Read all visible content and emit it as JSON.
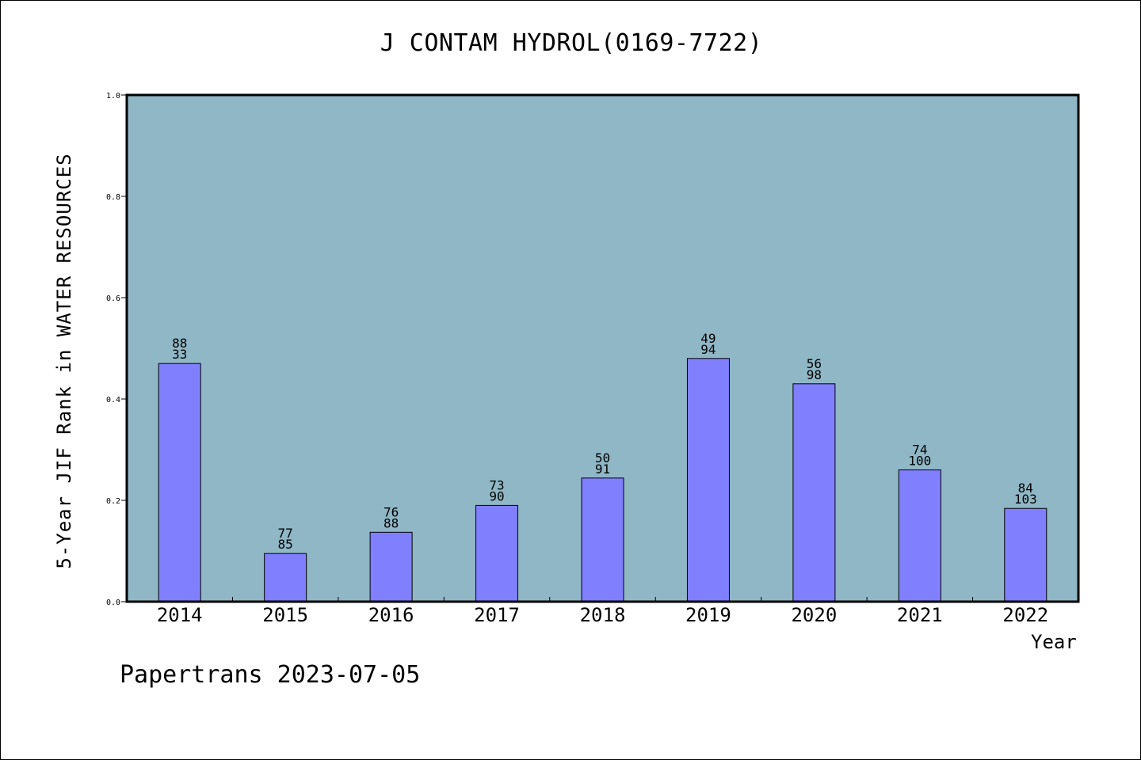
{
  "chart_data": {
    "type": "bar",
    "title": "J CONTAM HYDROL(0169-7722)",
    "xlabel": "Year",
    "ylabel": "5-Year JIF Rank in WATER RESOURCES",
    "ylim": [
      0.0,
      1.0
    ],
    "yticks": [
      "0.0",
      "0.2",
      "0.4",
      "0.6",
      "0.8",
      "1.0"
    ],
    "categories": [
      "2014",
      "2015",
      "2016",
      "2017",
      "2018",
      "2019",
      "2020",
      "2021",
      "2022"
    ],
    "values": [
      0.47,
      0.095,
      0.137,
      0.19,
      0.244,
      0.48,
      0.43,
      0.26,
      0.184
    ],
    "labels_top": [
      "88",
      "77",
      "76",
      "73",
      "50",
      "49",
      "56",
      "74",
      "84"
    ],
    "labels_bottom": [
      "33",
      "85",
      "88",
      "90",
      "91",
      "94",
      "98",
      "100",
      "103"
    ],
    "grid": false,
    "colors": {
      "plot_background": "#8fb7c6",
      "bar": "#8080ff",
      "bar_edge": "#000000"
    }
  },
  "footer": "Papertrans 2023-07-05"
}
